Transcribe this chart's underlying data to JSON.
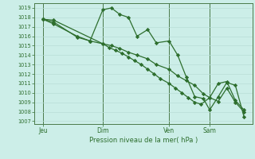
{
  "bg_color": "#cceee8",
  "grid_color": "#b8ddd6",
  "line_color": "#2d6e2d",
  "marker_color": "#2d6e2d",
  "ylabel_min": 1007,
  "ylabel_max": 1019,
  "xlabel": "Pression niveau de la mer( hPa )",
  "xtick_labels": [
    "Jeu",
    "Dim",
    "Ven",
    "Sam"
  ],
  "xtick_positions": [
    0.04,
    0.32,
    0.63,
    0.82
  ],
  "vline_x": [
    0.04,
    0.32,
    0.63,
    0.82
  ],
  "series1_x": [
    0.04,
    0.09,
    0.32,
    0.35,
    0.38,
    0.41,
    0.44,
    0.47,
    0.5,
    0.53,
    0.56,
    0.59,
    0.63,
    0.66,
    0.69,
    0.72,
    0.75,
    0.78,
    0.82,
    0.86,
    0.9,
    0.94,
    0.98
  ],
  "series1_y": [
    1017.8,
    1017.7,
    1015.2,
    1014.8,
    1014.5,
    1014.2,
    1013.8,
    1013.4,
    1013.0,
    1012.5,
    1012.0,
    1011.5,
    1011.0,
    1010.5,
    1010.0,
    1009.5,
    1009.0,
    1008.8,
    1009.5,
    1011.0,
    1011.2,
    1009.2,
    1008.2
  ],
  "series2_x": [
    0.04,
    0.09,
    0.2,
    0.26,
    0.32,
    0.36,
    0.4,
    0.44,
    0.48,
    0.53,
    0.57,
    0.63,
    0.67,
    0.71,
    0.75,
    0.79,
    0.82,
    0.86,
    0.9,
    0.94,
    0.98
  ],
  "series2_y": [
    1017.8,
    1017.5,
    1015.9,
    1015.5,
    1018.8,
    1019.0,
    1018.3,
    1018.0,
    1016.0,
    1016.7,
    1015.3,
    1015.5,
    1014.0,
    1011.7,
    1009.6,
    1009.4,
    1008.2,
    1009.6,
    1011.1,
    1010.8,
    1007.5
  ],
  "series3_x": [
    0.04,
    0.09,
    0.2,
    0.26,
    0.32,
    0.36,
    0.4,
    0.44,
    0.48,
    0.53,
    0.57,
    0.63,
    0.67,
    0.71,
    0.75,
    0.79,
    0.82,
    0.86,
    0.9,
    0.94,
    0.98
  ],
  "series3_y": [
    1017.8,
    1017.3,
    1016.0,
    1015.5,
    1015.2,
    1015.0,
    1014.7,
    1014.3,
    1014.0,
    1013.6,
    1013.0,
    1012.5,
    1011.8,
    1011.3,
    1010.8,
    1009.9,
    1009.5,
    1009.1,
    1010.5,
    1009.0,
    1008.0
  ]
}
